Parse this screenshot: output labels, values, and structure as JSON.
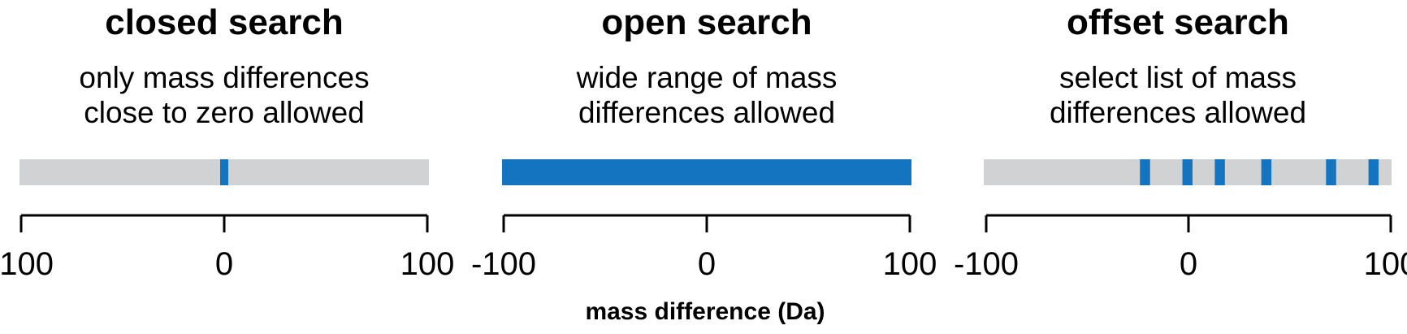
{
  "colors": {
    "track": "#d1d2d4",
    "allowed": "#1474bf",
    "text": "#000000"
  },
  "x_axis_label": "mass difference (Da)",
  "axis_range": [
    -100,
    100
  ],
  "axis_ticks": [
    -100,
    0,
    100
  ],
  "panels": [
    {
      "title": "closed search",
      "description": [
        "only mass differences",
        "close to zero allowed"
      ],
      "track_full": false,
      "allowed_regions": [
        [
          -2,
          2
        ]
      ]
    },
    {
      "title": "open search",
      "description": [
        "wide range of mass",
        "differences allowed"
      ],
      "track_full": true,
      "allowed_regions": [
        [
          -100,
          100
        ]
      ]
    },
    {
      "title": "offset search",
      "description": [
        "select list of mass",
        "differences allowed"
      ],
      "track_full": false,
      "allowed_regions": [
        [
          -24,
          -19
        ],
        [
          -3,
          2
        ],
        [
          13,
          18
        ],
        [
          36,
          41
        ],
        [
          68,
          73
        ],
        [
          89,
          94
        ]
      ]
    }
  ]
}
